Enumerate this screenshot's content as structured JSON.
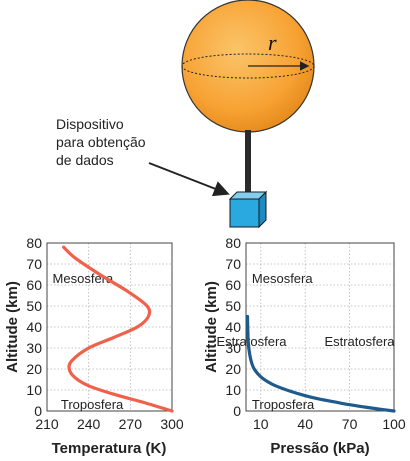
{
  "colors": {
    "temperature_curve": "#f0604a",
    "pressure_curve": "#1f5a8c",
    "temperature_label": "#f0604a",
    "pressure_label": "#1f6fa8",
    "balloon": "#f7a233",
    "box": "#2aa8e0"
  },
  "illustration": {
    "radius_label": "r",
    "device_label_lines": [
      "Dispositivo",
      "para obtenção",
      "de dados"
    ]
  },
  "chart_data": [
    {
      "type": "line",
      "xlabel": "Temperatura (K)",
      "ylabel": "Altitude (km)",
      "xlim": [
        210,
        300
      ],
      "ylim": [
        0,
        80
      ],
      "x_ticks": [
        "210",
        "240",
        "270",
        "300"
      ],
      "y_ticks": [
        "0",
        "10",
        "20",
        "30",
        "40",
        "50",
        "60",
        "70",
        "80"
      ],
      "grid": true,
      "annotations": [
        {
          "text": "Mesosfera",
          "x": 214,
          "y": 61
        },
        {
          "text": "Estratosfera",
          "x": 332,
          "y": 31
        },
        {
          "text": "Troposfera",
          "x": 220,
          "y": 1
        }
      ],
      "series": [
        {
          "x": [
            300,
            280,
            258,
            240,
            230,
            226,
            228,
            240,
            258,
            275,
            283,
            282,
            268,
            248,
            230,
            222
          ],
          "y": [
            0,
            4,
            8,
            12,
            16,
            20,
            24,
            30,
            35,
            40,
            45,
            50,
            57,
            65,
            73,
            78
          ]
        }
      ]
    },
    {
      "type": "line",
      "xlabel": "Pressão (kPa)",
      "ylabel": "Altitude (km)",
      "xlim": [
        0,
        100
      ],
      "ylim": [
        0,
        80
      ],
      "x_ticks": [
        "10",
        "40",
        "70",
        "100"
      ],
      "x_tick_values": [
        10,
        40,
        70,
        100
      ],
      "y_ticks": [
        "0",
        "10",
        "20",
        "30",
        "40",
        "50",
        "60",
        "70",
        "80"
      ],
      "grid": true,
      "annotations": [
        {
          "text": "Mesosfera",
          "x": 4,
          "y": 61
        },
        {
          "text": "Estratosfera",
          "x": 53,
          "y": 31
        },
        {
          "text": "Troposfera",
          "x": 4,
          "y": 1
        }
      ],
      "series": [
        {
          "x": [
            100,
            90,
            80,
            70,
            60,
            50,
            40,
            30,
            20,
            15,
            10,
            6,
            4,
            2.5,
            1.5,
            1
          ],
          "y": [
            0,
            0.9,
            1.9,
            3.0,
            4.3,
            5.6,
            7.3,
            9.4,
            12.0,
            13.8,
            16.3,
            19.5,
            22.5,
            27,
            33,
            45
          ]
        }
      ]
    }
  ]
}
